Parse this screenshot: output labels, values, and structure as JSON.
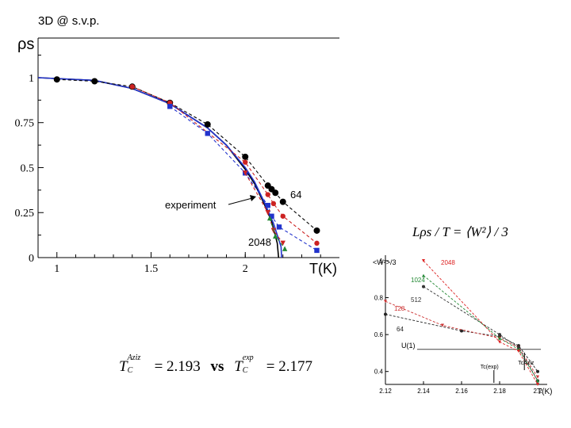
{
  "slide": {
    "title": "3D @ s.v.p."
  },
  "chart_data": [
    {
      "type": "line",
      "ylabel": "ρs",
      "xlabel": "T(K)",
      "xlim": [
        0.9,
        2.5
      ],
      "ylim": [
        0,
        1.22
      ],
      "xticks": [
        1,
        1.5,
        2
      ],
      "yticks": [
        0,
        0.25,
        0.5,
        0.75,
        1
      ],
      "ytick_labels": [
        "0",
        "0.25",
        "0.5",
        "0.75",
        "1"
      ],
      "annotations": [
        "experiment",
        "64",
        "2048"
      ],
      "series": [
        {
          "color": "#000000",
          "style": "solid",
          "x": [
            0.9,
            1.2,
            1.4,
            1.6,
            1.8,
            1.9,
            2.0,
            2.05,
            2.1,
            2.14,
            2.17,
            2.177
          ],
          "y": [
            1.0,
            0.985,
            0.94,
            0.855,
            0.72,
            0.625,
            0.49,
            0.41,
            0.3,
            0.2,
            0.08,
            0.0
          ]
        },
        {
          "color": "#2233cc",
          "style": "solid",
          "x": [
            0.9,
            1.2,
            1.4,
            1.6,
            1.8,
            1.9,
            2.0,
            2.05,
            2.1,
            2.15,
            2.19,
            2.193
          ],
          "y": [
            1.0,
            0.985,
            0.94,
            0.855,
            0.72,
            0.625,
            0.5,
            0.42,
            0.31,
            0.19,
            0.06,
            0.0
          ]
        },
        {
          "color": "#000000",
          "style": "dashed",
          "marker": "circle",
          "x": [
            1.0,
            1.2,
            1.4,
            1.6,
            1.8,
            2.0,
            2.12,
            2.14,
            2.16,
            2.2,
            2.38
          ],
          "y": [
            0.99,
            0.98,
            0.95,
            0.86,
            0.74,
            0.56,
            0.4,
            0.38,
            0.36,
            0.31,
            0.15
          ]
        },
        {
          "color": "#cc2222",
          "style": "dashed",
          "marker": "circle",
          "x": [
            1.4,
            1.6,
            2.0,
            2.12,
            2.15,
            2.2,
            2.38
          ],
          "y": [
            0.95,
            0.86,
            0.53,
            0.35,
            0.3,
            0.23,
            0.08
          ]
        },
        {
          "color": "#2233cc",
          "style": "dashed",
          "marker": "square",
          "x": [
            1.6,
            1.8,
            2.0,
            2.12,
            2.14,
            2.18,
            2.38
          ],
          "y": [
            0.84,
            0.69,
            0.47,
            0.29,
            0.23,
            0.17,
            0.04
          ]
        },
        {
          "color": "#cc2222",
          "style": "dashed",
          "marker": "triangle-down",
          "x": [
            2.0,
            2.12,
            2.15,
            2.2
          ],
          "y": [
            0.47,
            0.25,
            0.15,
            0.08
          ]
        },
        {
          "color": "#228833",
          "style": "dashed",
          "marker": "triangle",
          "x": [
            2.13,
            2.16,
            2.21
          ],
          "y": [
            0.22,
            0.12,
            0.05
          ]
        }
      ]
    },
    {
      "type": "line",
      "title": "Lρs / T = ⟨W²⟩ / 3",
      "xlabel": "T(K)",
      "ylabel": "<W²>/3",
      "xlim": [
        2.12,
        2.205
      ],
      "ylim": [
        0.33,
        1.03
      ],
      "xticks": [
        2.12,
        2.14,
        2.16,
        2.18,
        2.2
      ],
      "yticks": [
        0.4,
        0.6,
        0.8,
        1
      ],
      "ytick_labels": [
        "0.4",
        "0.6",
        "0.8",
        "1"
      ],
      "hline": {
        "y": 0.52,
        "label": "U(1)"
      },
      "annotations": [
        "Tc(exp)",
        "TcAziz"
      ],
      "series": [
        {
          "name": "64",
          "color": "#222222",
          "marker": "circle",
          "x": [
            2.12,
            2.16,
            2.18,
            2.19,
            2.2
          ],
          "y": [
            0.71,
            0.62,
            0.59,
            0.54,
            0.4
          ]
        },
        {
          "name": "128",
          "color": "#cc3333",
          "marker": "triangle-down",
          "x": [
            2.12,
            2.15,
            2.18,
            2.19,
            2.2
          ],
          "y": [
            0.78,
            0.65,
            0.58,
            0.53,
            0.37
          ]
        },
        {
          "name": "512",
          "color": "#333333",
          "marker": "circle",
          "x": [
            2.14,
            2.18,
            2.19,
            2.2
          ],
          "y": [
            0.86,
            0.6,
            0.53,
            0.35
          ]
        },
        {
          "name": "1024",
          "color": "#228833",
          "marker": "triangle",
          "x": [
            2.14,
            2.18,
            2.19,
            2.2
          ],
          "y": [
            0.92,
            0.58,
            0.52,
            0.35
          ]
        },
        {
          "name": "2048",
          "color": "#dd2222",
          "marker": "triangle-down",
          "x": [
            2.14,
            2.18,
            2.19,
            2.2
          ],
          "y": [
            1.0,
            0.56,
            0.51,
            0.33
          ]
        }
      ]
    }
  ],
  "formula": {
    "left_sup": "Aziz",
    "left_value": "= 2.193",
    "vs": "vs",
    "right_sup": "exp",
    "right_value": "= 2.177",
    "symbol": "T",
    "sub": "C"
  }
}
